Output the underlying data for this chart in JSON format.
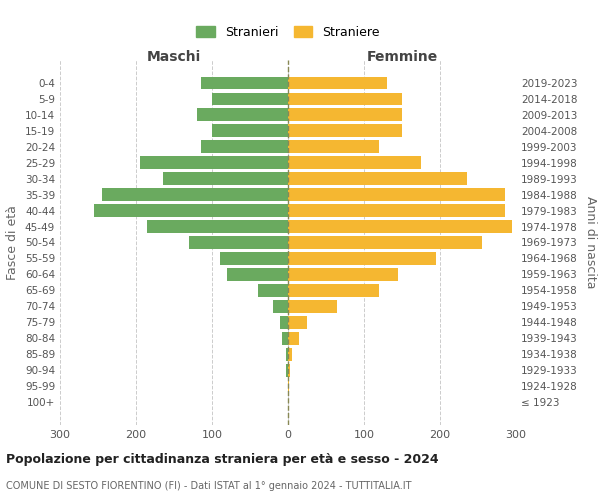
{
  "age_groups": [
    "0-4",
    "5-9",
    "10-14",
    "15-19",
    "20-24",
    "25-29",
    "30-34",
    "35-39",
    "40-44",
    "45-49",
    "50-54",
    "55-59",
    "60-64",
    "65-69",
    "70-74",
    "75-79",
    "80-84",
    "85-89",
    "90-94",
    "95-99",
    "100+"
  ],
  "birth_years": [
    "2019-2023",
    "2014-2018",
    "2009-2013",
    "2004-2008",
    "1999-2003",
    "1994-1998",
    "1989-1993",
    "1984-1988",
    "1979-1983",
    "1974-1978",
    "1969-1973",
    "1964-1968",
    "1959-1963",
    "1954-1958",
    "1949-1953",
    "1944-1948",
    "1939-1943",
    "1934-1938",
    "1929-1933",
    "1924-1928",
    "≤ 1923"
  ],
  "males": [
    115,
    100,
    120,
    100,
    115,
    195,
    165,
    245,
    255,
    185,
    130,
    90,
    80,
    40,
    20,
    10,
    8,
    3,
    2,
    0,
    0
  ],
  "females": [
    130,
    150,
    150,
    150,
    120,
    175,
    235,
    285,
    285,
    295,
    255,
    195,
    145,
    120,
    65,
    25,
    15,
    5,
    2,
    1,
    0
  ],
  "male_color": "#6aaa5f",
  "female_color": "#f5b731",
  "background_color": "#ffffff",
  "grid_color": "#cccccc",
  "title": "Popolazione per cittadinanza straniera per età e sesso - 2024",
  "subtitle": "COMUNE DI SESTO FIORENTINO (FI) - Dati ISTAT al 1° gennaio 2024 - TUTTITALIA.IT",
  "xlabel_left": "Maschi",
  "xlabel_right": "Femmine",
  "ylabel_left": "Fasce di età",
  "ylabel_right": "Anni di nascita",
  "legend_male": "Stranieri",
  "legend_female": "Straniere",
  "xlim": 300,
  "bar_height": 0.8
}
